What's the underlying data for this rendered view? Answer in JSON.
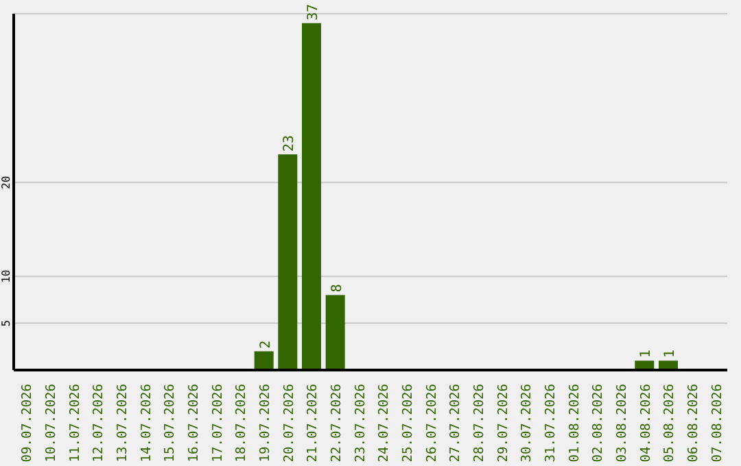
{
  "chart_data": {
    "type": "bar",
    "categories": [
      "09.07.2026",
      "10.07.2026",
      "11.07.2026",
      "12.07.2026",
      "13.07.2026",
      "14.07.2026",
      "15.07.2026",
      "16.07.2026",
      "17.07.2026",
      "18.07.2026",
      "19.07.2026",
      "20.07.2026",
      "21.07.2026",
      "22.07.2026",
      "23.07.2026",
      "24.07.2026",
      "25.07.2026",
      "26.07.2026",
      "27.07.2026",
      "28.07.2026",
      "29.07.2026",
      "30.07.2026",
      "31.07.2026",
      "01.08.2026",
      "02.08.2026",
      "03.08.2026",
      "04.08.2026",
      "05.08.2026",
      "06.08.2026",
      "07.08.2026"
    ],
    "values": [
      0,
      0,
      0,
      0,
      0,
      0,
      0,
      0,
      0,
      0,
      2,
      23,
      37,
      8,
      0,
      0,
      0,
      0,
      0,
      0,
      0,
      0,
      0,
      0,
      0,
      0,
      1,
      1,
      0,
      0
    ],
    "color": "#336600",
    "value_labels": [
      null,
      null,
      null,
      null,
      null,
      null,
      null,
      null,
      null,
      null,
      "2",
      "23",
      "37",
      "8",
      null,
      null,
      null,
      null,
      null,
      null,
      null,
      null,
      null,
      null,
      null,
      null,
      "1",
      "1",
      null,
      null
    ],
    "ylim": [
      0,
      38
    ],
    "yticks": [
      5,
      10,
      20
    ],
    "grid": "y"
  }
}
